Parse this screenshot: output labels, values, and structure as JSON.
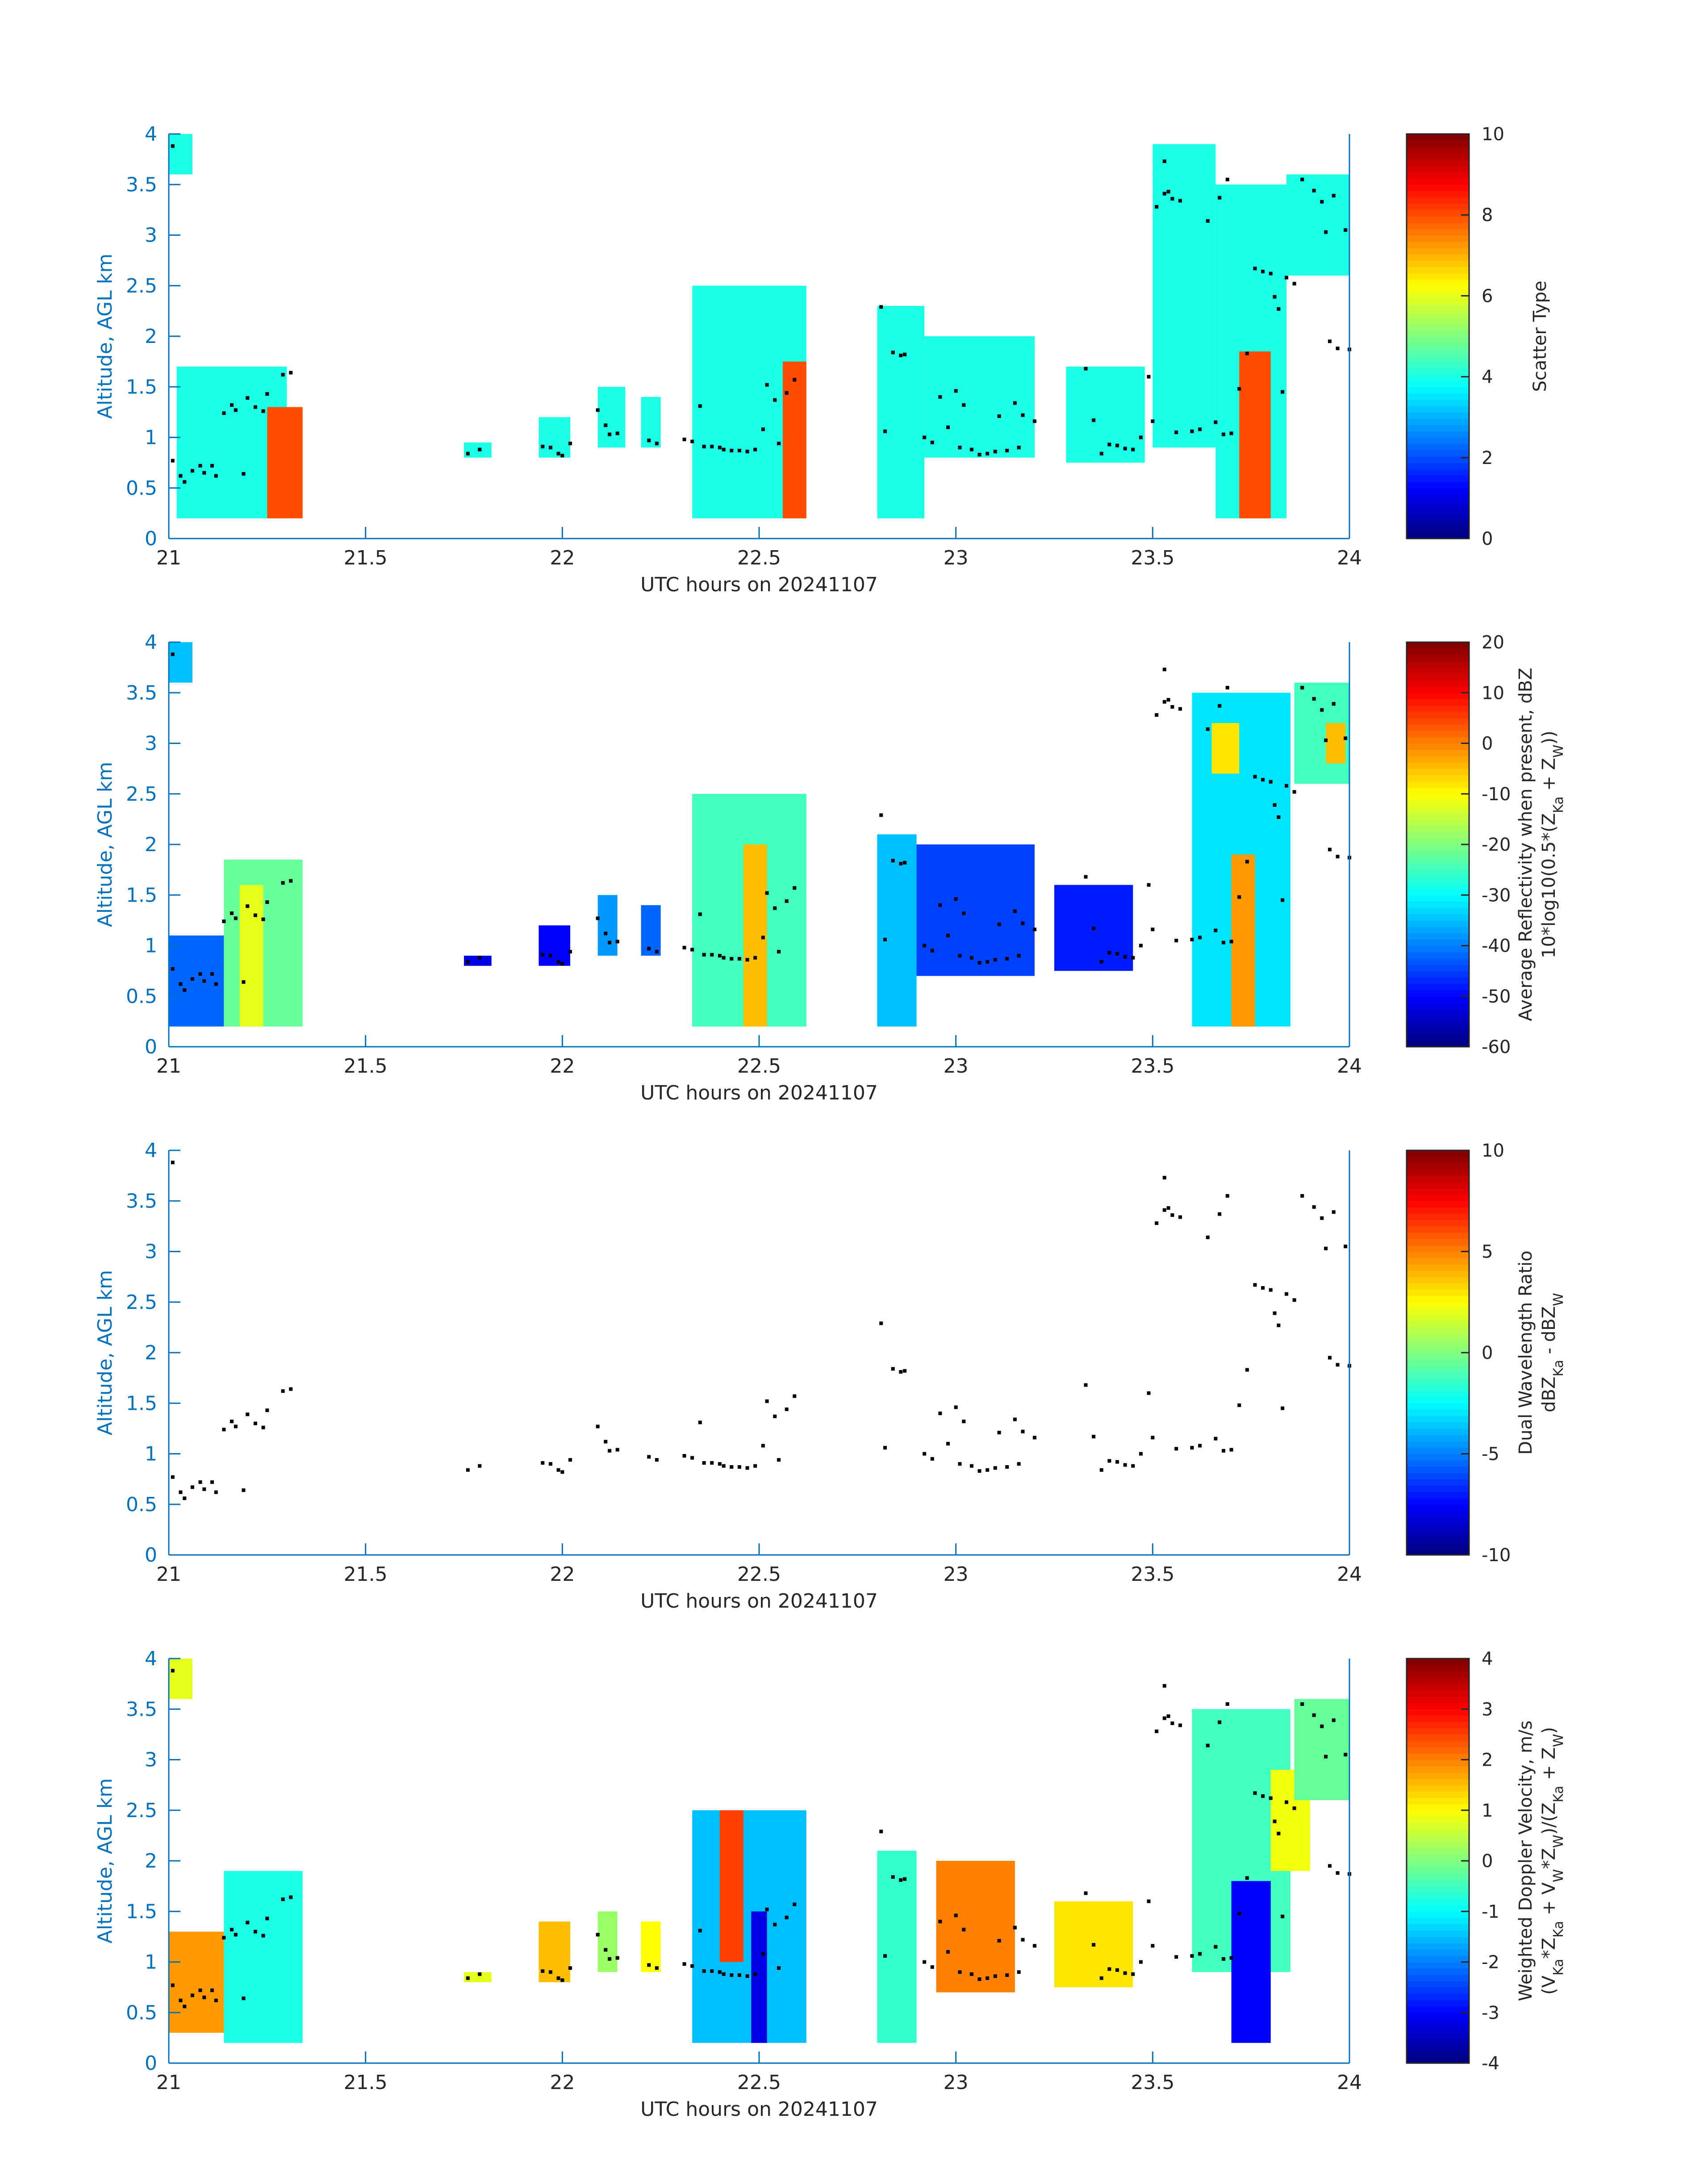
{
  "figure": {
    "background": "#ffffff",
    "axis_color": "#0072BD",
    "text_color": "#262626",
    "marker_color": "#000000"
  },
  "chart_data": [
    {
      "type": "heatmap",
      "panel": "scatter-type",
      "xlabel": "UTC hours on 20241107",
      "ylabel": "Altitude, AGL km",
      "xlim": [
        21,
        24
      ],
      "ylim": [
        0,
        4
      ],
      "xticks": [
        "21",
        "21.5",
        "22",
        "22.5",
        "23",
        "23.5",
        "24"
      ],
      "yticks": [
        "0",
        "0.5",
        "1",
        "1.5",
        "2",
        "2.5",
        "3",
        "3.5",
        "4"
      ],
      "colorbar": {
        "label_lines": [
          "Scatter Type"
        ],
        "clim": [
          0,
          10
        ],
        "ticks": [
          "0",
          "2",
          "4",
          "6",
          "8",
          "10"
        ]
      },
      "regions": [
        {
          "x0": 21.0,
          "x1": 21.06,
          "y0": 3.6,
          "y1": 4.0,
          "v": 4
        },
        {
          "x0": 21.02,
          "x1": 21.3,
          "y0": 0.2,
          "y1": 1.7,
          "v": 4
        },
        {
          "x0": 21.25,
          "x1": 21.34,
          "y0": 0.2,
          "y1": 1.3,
          "v": 8
        },
        {
          "x0": 21.75,
          "x1": 21.82,
          "y0": 0.8,
          "y1": 0.95,
          "v": 4
        },
        {
          "x0": 21.94,
          "x1": 22.02,
          "y0": 0.8,
          "y1": 1.2,
          "v": 4
        },
        {
          "x0": 22.09,
          "x1": 22.16,
          "y0": 0.9,
          "y1": 1.5,
          "v": 4
        },
        {
          "x0": 22.2,
          "x1": 22.25,
          "y0": 0.9,
          "y1": 1.4,
          "v": 4
        },
        {
          "x0": 22.33,
          "x1": 22.62,
          "y0": 0.2,
          "y1": 2.5,
          "v": 4
        },
        {
          "x0": 22.56,
          "x1": 22.62,
          "y0": 0.2,
          "y1": 1.75,
          "v": 8
        },
        {
          "x0": 22.8,
          "x1": 22.92,
          "y0": 0.2,
          "y1": 2.3,
          "v": 4
        },
        {
          "x0": 22.92,
          "x1": 23.2,
          "y0": 0.8,
          "y1": 2.0,
          "v": 4
        },
        {
          "x0": 23.28,
          "x1": 23.48,
          "y0": 0.75,
          "y1": 1.7,
          "v": 4
        },
        {
          "x0": 23.5,
          "x1": 23.66,
          "y0": 0.9,
          "y1": 3.9,
          "v": 4
        },
        {
          "x0": 23.66,
          "x1": 23.84,
          "y0": 0.2,
          "y1": 3.5,
          "v": 4
        },
        {
          "x0": 23.84,
          "x1": 24.0,
          "y0": 2.6,
          "y1": 3.6,
          "v": 4
        },
        {
          "x0": 23.72,
          "x1": 23.8,
          "y0": 0.2,
          "y1": 1.85,
          "v": 8
        }
      ]
    },
    {
      "type": "heatmap",
      "panel": "reflectivity",
      "xlabel": "UTC hours on 20241107",
      "ylabel": "Altitude, AGL km",
      "xlim": [
        21,
        24
      ],
      "ylim": [
        0,
        4
      ],
      "xticks": [
        "21",
        "21.5",
        "22",
        "22.5",
        "23",
        "23.5",
        "24"
      ],
      "yticks": [
        "0",
        "0.5",
        "1",
        "1.5",
        "2",
        "2.5",
        "3",
        "3.5",
        "4"
      ],
      "colorbar": {
        "label_lines": [
          "Average Reflectivity when present, dBZ",
          "10*log10(0.5*(Z",
          "Ka",
          " + Z",
          "W",
          "))"
        ],
        "clim": [
          -60,
          20
        ],
        "ticks": [
          "-60",
          "-50",
          "-40",
          "-30",
          "-20",
          "-10",
          "0",
          "10",
          "20"
        ]
      },
      "regions": [
        {
          "x0": 21.0,
          "x1": 21.06,
          "y0": 3.6,
          "y1": 4.0,
          "v": -35
        },
        {
          "x0": 21.0,
          "x1": 21.14,
          "y0": 0.2,
          "y1": 1.1,
          "v": -42
        },
        {
          "x0": 21.14,
          "x1": 21.34,
          "y0": 0.2,
          "y1": 1.85,
          "v": -22
        },
        {
          "x0": 21.18,
          "x1": 21.24,
          "y0": 0.2,
          "y1": 1.6,
          "v": -12
        },
        {
          "x0": 21.75,
          "x1": 21.82,
          "y0": 0.8,
          "y1": 0.9,
          "v": -52
        },
        {
          "x0": 21.94,
          "x1": 22.02,
          "y0": 0.8,
          "y1": 1.2,
          "v": -50
        },
        {
          "x0": 22.09,
          "x1": 22.14,
          "y0": 0.9,
          "y1": 1.5,
          "v": -38
        },
        {
          "x0": 22.2,
          "x1": 22.25,
          "y0": 0.9,
          "y1": 1.4,
          "v": -42
        },
        {
          "x0": 22.33,
          "x1": 22.62,
          "y0": 0.2,
          "y1": 2.5,
          "v": -25
        },
        {
          "x0": 22.46,
          "x1": 22.52,
          "y0": 0.2,
          "y1": 2.0,
          "v": -5
        },
        {
          "x0": 22.8,
          "x1": 22.9,
          "y0": 0.2,
          "y1": 2.1,
          "v": -35
        },
        {
          "x0": 22.9,
          "x1": 23.2,
          "y0": 0.7,
          "y1": 2.0,
          "v": -45
        },
        {
          "x0": 23.25,
          "x1": 23.45,
          "y0": 0.75,
          "y1": 1.6,
          "v": -48
        },
        {
          "x0": 23.6,
          "x1": 23.85,
          "y0": 0.2,
          "y1": 3.5,
          "v": -32
        },
        {
          "x0": 23.7,
          "x1": 23.76,
          "y0": 0.2,
          "y1": 1.9,
          "v": -2
        },
        {
          "x0": 23.65,
          "x1": 23.72,
          "y0": 2.7,
          "y1": 3.2,
          "v": -8
        },
        {
          "x0": 23.86,
          "x1": 24.0,
          "y0": 2.6,
          "y1": 3.6,
          "v": -25
        },
        {
          "x0": 23.94,
          "x1": 23.99,
          "y0": 2.8,
          "y1": 3.2,
          "v": -5
        }
      ]
    },
    {
      "type": "heatmap",
      "panel": "dual-wavelength-ratio",
      "xlabel": "UTC hours on 20241107",
      "ylabel": "Altitude, AGL km",
      "xlim": [
        21,
        24
      ],
      "ylim": [
        0,
        4
      ],
      "xticks": [
        "21",
        "21.5",
        "22",
        "22.5",
        "23",
        "23.5",
        "24"
      ],
      "yticks": [
        "0",
        "0.5",
        "1",
        "1.5",
        "2",
        "2.5",
        "3",
        "3.5",
        "4"
      ],
      "colorbar": {
        "label_lines": [
          "Dual Wavelength Ratio",
          "dBZ",
          "Ka",
          " - dBZ",
          "W"
        ],
        "clim": [
          -10,
          10
        ],
        "ticks": [
          "-10",
          "-5",
          "0",
          "5",
          "10"
        ]
      },
      "regions": []
    },
    {
      "type": "heatmap",
      "panel": "doppler-velocity",
      "xlabel": "UTC hours on 20241107",
      "ylabel": "Altitude, AGL km",
      "xlim": [
        21,
        24
      ],
      "ylim": [
        0,
        4
      ],
      "xticks": [
        "21",
        "21.5",
        "22",
        "22.5",
        "23",
        "23.5",
        "24"
      ],
      "yticks": [
        "0",
        "0.5",
        "1",
        "1.5",
        "2",
        "2.5",
        "3",
        "3.5",
        "4"
      ],
      "colorbar": {
        "label_lines": [
          "Weighted Doppler Velocity, m/s",
          "(V",
          "Ka",
          "*Z",
          "Ka",
          " + V",
          "W",
          "*Z",
          "W",
          ")/(Z",
          "Ka",
          " + Z",
          "W",
          ")"
        ],
        "clim": [
          -4,
          4
        ],
        "ticks": [
          "-4",
          "-3",
          "-2",
          "-1",
          "0",
          "1",
          "2",
          "3",
          "4"
        ]
      },
      "regions": [
        {
          "x0": 21.0,
          "x1": 21.06,
          "y0": 3.6,
          "y1": 4.0,
          "v": 0.8
        },
        {
          "x0": 21.0,
          "x1": 21.14,
          "y0": 0.3,
          "y1": 1.3,
          "v": 1.8
        },
        {
          "x0": 21.14,
          "x1": 21.34,
          "y0": 0.2,
          "y1": 1.9,
          "v": -0.8
        },
        {
          "x0": 21.75,
          "x1": 21.82,
          "y0": 0.8,
          "y1": 0.9,
          "v": 0.8
        },
        {
          "x0": 21.94,
          "x1": 22.02,
          "y0": 0.8,
          "y1": 1.4,
          "v": 1.5
        },
        {
          "x0": 22.09,
          "x1": 22.14,
          "y0": 0.9,
          "y1": 1.5,
          "v": 0.2
        },
        {
          "x0": 22.2,
          "x1": 22.25,
          "y0": 0.9,
          "y1": 1.4,
          "v": 1.0
        },
        {
          "x0": 22.33,
          "x1": 22.62,
          "y0": 0.2,
          "y1": 2.5,
          "v": -1.5
        },
        {
          "x0": 22.4,
          "x1": 22.46,
          "y0": 1.0,
          "y1": 2.5,
          "v": 2.5
        },
        {
          "x0": 22.48,
          "x1": 22.52,
          "y0": 0.2,
          "y1": 1.5,
          "v": -3.2
        },
        {
          "x0": 22.8,
          "x1": 22.9,
          "y0": 0.2,
          "y1": 2.1,
          "v": -0.6
        },
        {
          "x0": 22.95,
          "x1": 23.15,
          "y0": 0.7,
          "y1": 2.0,
          "v": 2.0
        },
        {
          "x0": 23.25,
          "x1": 23.45,
          "y0": 0.75,
          "y1": 1.6,
          "v": 1.2
        },
        {
          "x0": 23.6,
          "x1": 23.85,
          "y0": 0.9,
          "y1": 3.5,
          "v": -0.5
        },
        {
          "x0": 23.7,
          "x1": 23.8,
          "y0": 0.2,
          "y1": 1.8,
          "v": -3.0
        },
        {
          "x0": 23.8,
          "x1": 23.9,
          "y0": 1.9,
          "y1": 2.9,
          "v": 0.9
        },
        {
          "x0": 23.86,
          "x1": 24.0,
          "y0": 2.6,
          "y1": 3.6,
          "v": -0.2
        }
      ]
    }
  ],
  "cloud_base_points": [
    [
      21.01,
      0.77
    ],
    [
      21.03,
      0.62
    ],
    [
      21.04,
      0.56
    ],
    [
      21.06,
      0.67
    ],
    [
      21.08,
      0.72
    ],
    [
      21.09,
      0.65
    ],
    [
      21.11,
      0.72
    ],
    [
      21.12,
      0.62
    ],
    [
      21.14,
      1.24
    ],
    [
      21.16,
      1.32
    ],
    [
      21.17,
      1.27
    ],
    [
      21.19,
      0.64
    ],
    [
      21.2,
      1.39
    ],
    [
      21.22,
      1.3
    ],
    [
      21.24,
      1.26
    ],
    [
      21.25,
      1.43
    ],
    [
      21.29,
      1.62
    ],
    [
      21.31,
      1.64
    ],
    [
      21.76,
      0.84
    ],
    [
      21.79,
      0.88
    ],
    [
      21.95,
      0.91
    ],
    [
      21.97,
      0.9
    ],
    [
      21.99,
      0.84
    ],
    [
      22.0,
      0.82
    ],
    [
      22.02,
      0.94
    ],
    [
      22.09,
      1.27
    ],
    [
      22.11,
      1.12
    ],
    [
      22.12,
      1.03
    ],
    [
      22.14,
      1.04
    ],
    [
      22.22,
      0.97
    ],
    [
      22.24,
      0.94
    ],
    [
      22.31,
      0.98
    ],
    [
      22.33,
      0.96
    ],
    [
      22.35,
      1.31
    ],
    [
      22.36,
      0.91
    ],
    [
      22.38,
      0.91
    ],
    [
      22.4,
      0.9
    ],
    [
      22.41,
      0.88
    ],
    [
      22.43,
      0.87
    ],
    [
      22.45,
      0.87
    ],
    [
      22.47,
      0.86
    ],
    [
      22.49,
      0.88
    ],
    [
      22.51,
      1.08
    ],
    [
      22.52,
      1.52
    ],
    [
      22.54,
      1.37
    ],
    [
      22.55,
      0.94
    ],
    [
      22.57,
      1.44
    ],
    [
      22.59,
      1.57
    ],
    [
      22.81,
      2.29
    ],
    [
      22.82,
      1.06
    ],
    [
      22.84,
      1.84
    ],
    [
      22.86,
      1.81
    ],
    [
      22.87,
      1.82
    ],
    [
      22.92,
      1.0
    ],
    [
      22.94,
      0.95
    ],
    [
      22.96,
      1.4
    ],
    [
      22.98,
      1.1
    ],
    [
      23.0,
      1.46
    ],
    [
      23.01,
      0.9
    ],
    [
      23.02,
      1.32
    ],
    [
      23.04,
      0.88
    ],
    [
      23.06,
      0.83
    ],
    [
      23.08,
      0.84
    ],
    [
      23.1,
      0.86
    ],
    [
      23.11,
      1.21
    ],
    [
      23.13,
      0.87
    ],
    [
      23.15,
      1.34
    ],
    [
      23.16,
      0.9
    ],
    [
      23.17,
      1.22
    ],
    [
      23.2,
      1.16
    ],
    [
      23.33,
      1.68
    ],
    [
      23.35,
      1.17
    ],
    [
      23.37,
      0.84
    ],
    [
      23.39,
      0.93
    ],
    [
      23.41,
      0.92
    ],
    [
      23.43,
      0.89
    ],
    [
      23.45,
      0.88
    ],
    [
      23.47,
      1.0
    ],
    [
      23.49,
      1.6
    ],
    [
      23.5,
      1.16
    ],
    [
      23.51,
      3.28
    ],
    [
      23.53,
      3.41
    ],
    [
      23.54,
      3.43
    ],
    [
      23.55,
      3.36
    ],
    [
      23.56,
      1.05
    ],
    [
      23.57,
      3.34
    ],
    [
      23.6,
      1.06
    ],
    [
      23.62,
      1.08
    ],
    [
      23.64,
      3.14
    ],
    [
      23.66,
      1.15
    ],
    [
      23.67,
      3.37
    ],
    [
      23.68,
      1.03
    ],
    [
      23.7,
      1.04
    ],
    [
      23.72,
      1.48
    ],
    [
      23.74,
      1.83
    ],
    [
      23.76,
      2.67
    ],
    [
      23.78,
      2.64
    ],
    [
      23.8,
      2.62
    ],
    [
      23.81,
      2.39
    ],
    [
      23.82,
      2.27
    ],
    [
      23.84,
      2.58
    ],
    [
      23.86,
      2.52
    ],
    [
      23.88,
      3.55
    ],
    [
      23.91,
      3.44
    ],
    [
      23.93,
      3.33
    ],
    [
      23.95,
      1.95
    ],
    [
      23.96,
      3.39
    ],
    [
      23.97,
      1.88
    ],
    [
      23.99,
      3.05
    ],
    [
      24.0,
      1.87
    ],
    [
      23.53,
      3.73
    ],
    [
      23.69,
      3.55
    ],
    [
      23.83,
      1.45
    ],
    [
      23.94,
      3.03
    ],
    [
      21.01,
      3.88
    ]
  ]
}
